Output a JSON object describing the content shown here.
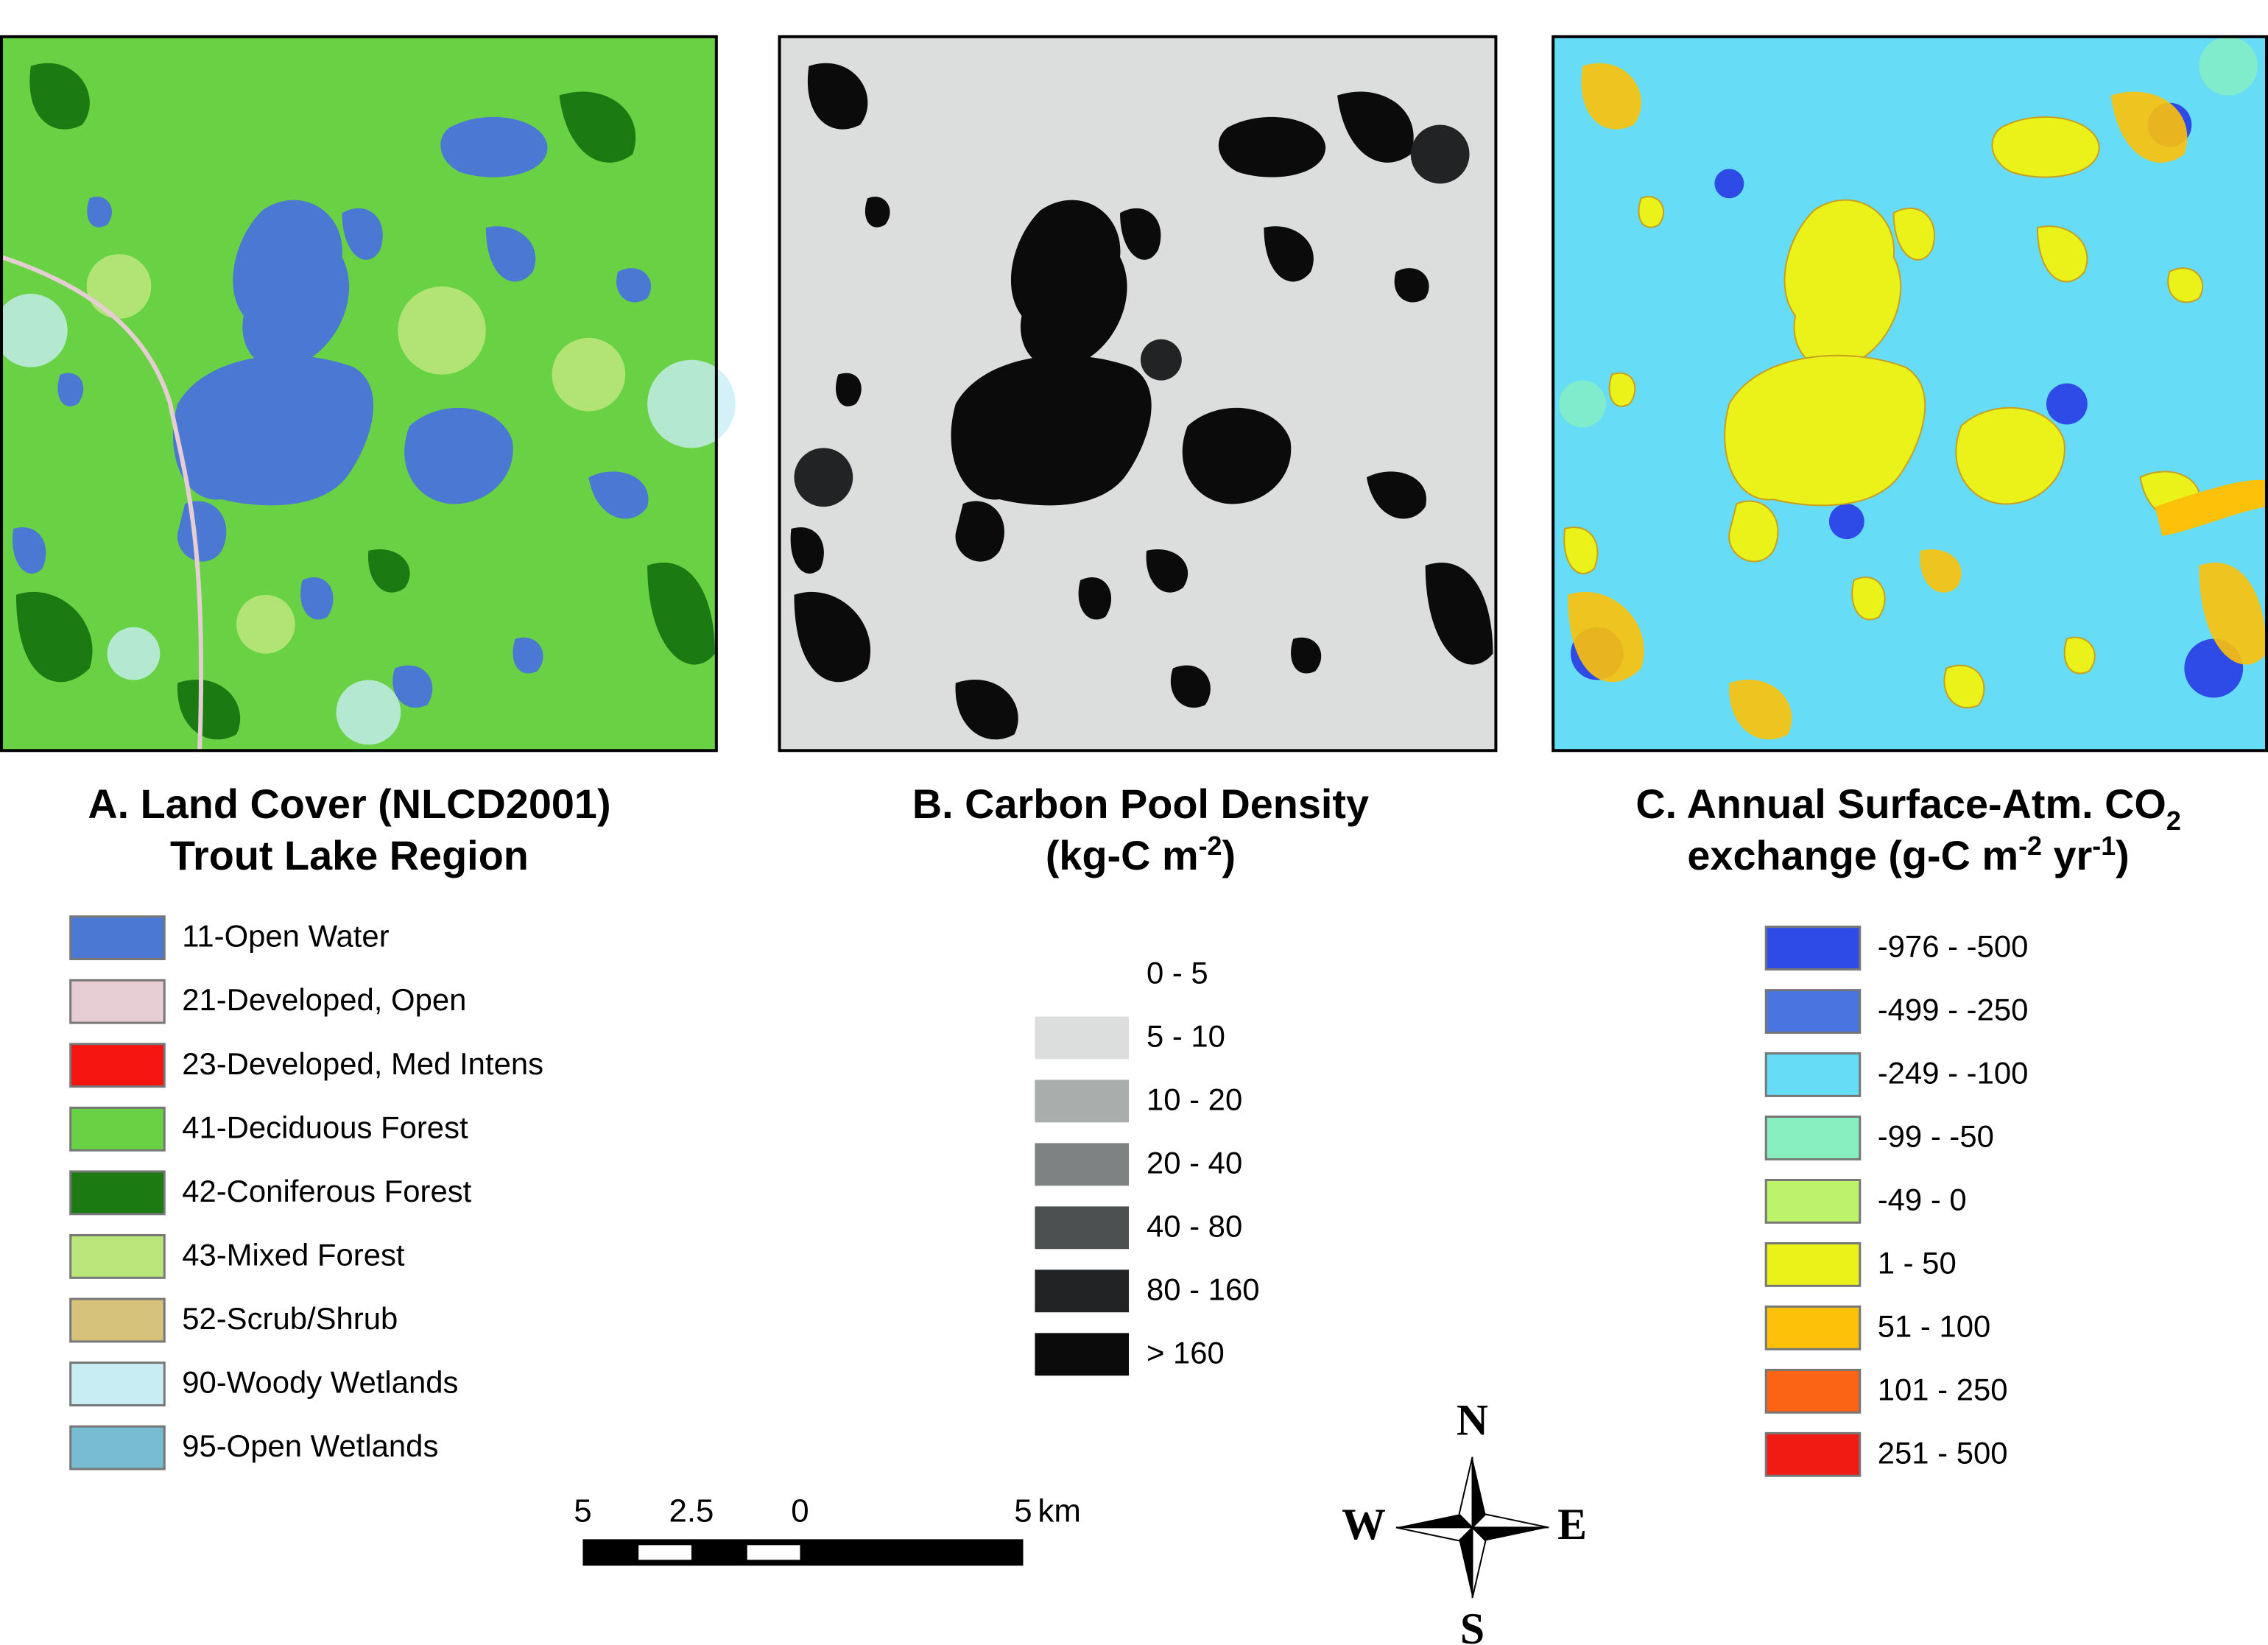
{
  "panels": [
    {
      "title": {
        "line1": [
          "A. Land Cover (NLCD2001)"
        ],
        "line2": [
          "Trout Lake Region"
        ]
      },
      "legend": [
        {
          "label": "11-Open Water",
          "color": "#4a78d2"
        },
        {
          "label": "21-Developed, Open",
          "color": "#e6cdd3"
        },
        {
          "label": "23-Developed, Med Intens",
          "color": "#f5140f"
        },
        {
          "label": "41-Deciduous Forest",
          "color": "#68d244"
        },
        {
          "label": "42-Coniferous Forest",
          "color": "#1c7a13"
        },
        {
          "label": "43-Mixed Forest",
          "color": "#b9e67a"
        },
        {
          "label": "52-Scrub/Shrub",
          "color": "#d6c27a"
        },
        {
          "label": "90-Woody Wetlands",
          "color": "#c8eef4"
        },
        {
          "label": "95-Open Wetlands",
          "color": "#77bcd0"
        }
      ]
    },
    {
      "title": {
        "line1": [
          "B. Carbon Pool Density"
        ],
        "line2": [
          "(kg-C m",
          "-2",
          ")"
        ]
      },
      "legend": [
        {
          "label": "0 - 5",
          "color": "#ffffff"
        },
        {
          "label": "5 - 10",
          "color": "#dcdddd"
        },
        {
          "label": "10 - 20",
          "color": "#a9adac"
        },
        {
          "label": "20 - 40",
          "color": "#7e8282"
        },
        {
          "label": "40 - 80",
          "color": "#4b4f50"
        },
        {
          "label": "80 - 160",
          "color": "#222324"
        },
        {
          "label": "> 160",
          "color": "#0b0b0c"
        }
      ]
    },
    {
      "title": {
        "line1": [
          "C. Annual Surface-Atm. CO",
          "2"
        ],
        "line2": [
          "exchange (g-C m",
          "-2",
          " yr",
          "-1",
          ")"
        ]
      },
      "legend": [
        {
          "label": "-976 - -500",
          "color": "#2e4be8"
        },
        {
          "label": "-499 - -250",
          "color": "#4a74e0"
        },
        {
          "label": "-249 - -100",
          "color": "#66dcf6"
        },
        {
          "label": "-99 - -50",
          "color": "#88f0c0"
        },
        {
          "label": "-49 - 0",
          "color": "#bdf36a"
        },
        {
          "label": "1 - 50",
          "color": "#eaf21a"
        },
        {
          "label": "51 - 100",
          "color": "#fdc10a"
        },
        {
          "label": "101 - 250",
          "color": "#fb6414"
        },
        {
          "label": "251 - 500",
          "color": "#f21b14"
        }
      ]
    }
  ],
  "scale_bar": {
    "labels": [
      5,
      2.5,
      0,
      5
    ],
    "unit": "km"
  },
  "compass": {
    "north": "N",
    "south": "S",
    "west": "W",
    "east": "E"
  }
}
